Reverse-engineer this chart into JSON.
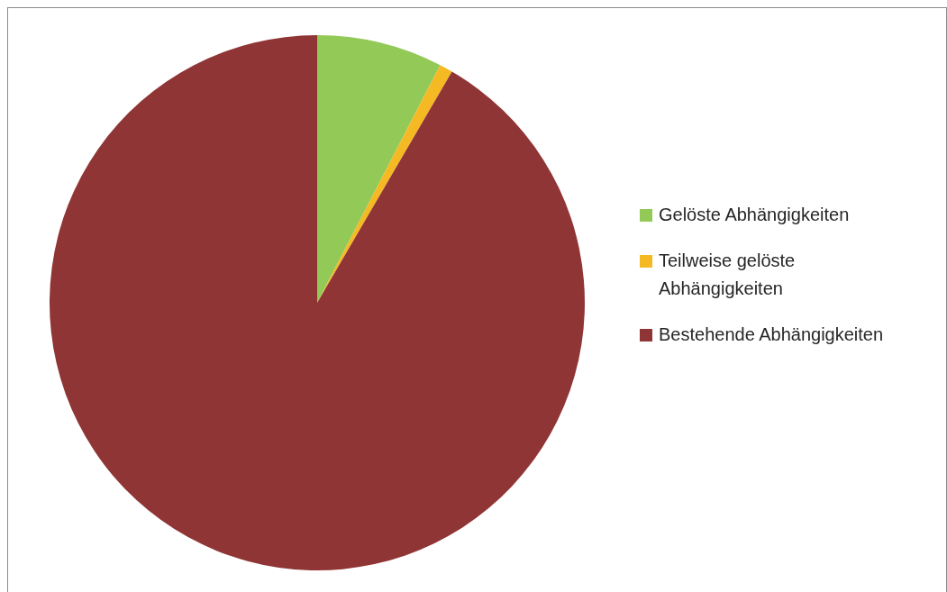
{
  "chart_data": {
    "type": "pie",
    "categories": [
      "Gelöste Abhängigkeiten",
      "Teilweise gelöste Abhängigkeiten",
      "Bestehende Abhängigkeiten"
    ],
    "values": [
      7.6,
      0.8,
      91.6
    ],
    "colors": [
      "#92c957",
      "#f5b924",
      "#903535"
    ],
    "legend": "right"
  }
}
